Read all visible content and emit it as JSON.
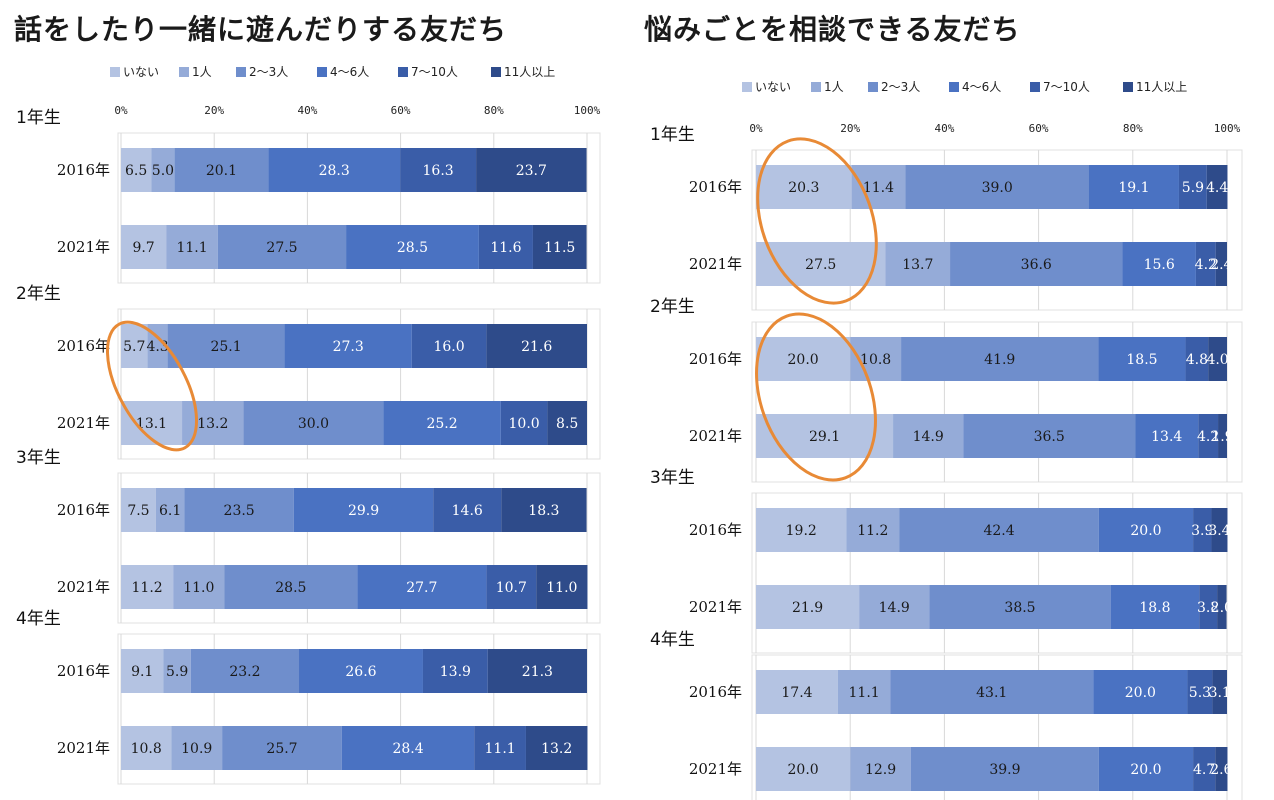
{
  "chart_data": [
    {
      "type": "bar",
      "stacked": true,
      "orientation": "horizontal",
      "title": "話をしたり一緒に遊んだりする友だち",
      "legend": [
        "いない",
        "1人",
        "2〜3人",
        "4〜6人",
        "7〜10人",
        "11人以上"
      ],
      "axis_ticks": [
        "0%",
        "20%",
        "40%",
        "60%",
        "80%",
        "100%"
      ],
      "xlim": [
        0,
        100
      ],
      "groups": [
        {
          "grade": "1年生",
          "rows": [
            {
              "year": "2016年",
              "values": [
                6.5,
                5.0,
                20.1,
                28.3,
                16.3,
                23.7
              ],
              "labels": [
                "6.5",
                "5.0",
                "20.1",
                "28.3",
                "16.3",
                "23.7"
              ]
            },
            {
              "year": "2021年",
              "values": [
                9.7,
                11.1,
                27.5,
                28.5,
                11.6,
                11.5
              ],
              "labels": [
                "9.7",
                "11.1",
                "27.5",
                "28.5",
                "11.6",
                "11.5"
              ]
            }
          ]
        },
        {
          "grade": "2年生",
          "rows": [
            {
              "year": "2016年",
              "values": [
                5.7,
                4.3,
                25.1,
                27.3,
                16.0,
                21.6
              ],
              "labels": [
                "5.7",
                "4.3",
                "25.1",
                "27.3",
                "16.0",
                "21.6"
              ]
            },
            {
              "year": "2021年",
              "values": [
                13.1,
                13.2,
                30.0,
                25.2,
                10.0,
                8.5
              ],
              "labels": [
                "13.1",
                "13.2",
                "30.0",
                "25.2",
                "10.0",
                "8.5"
              ]
            }
          ]
        },
        {
          "grade": "3年生",
          "rows": [
            {
              "year": "2016年",
              "values": [
                7.5,
                6.1,
                23.5,
                29.9,
                14.6,
                18.3
              ],
              "labels": [
                "7.5",
                "6.1",
                "23.5",
                "29.9",
                "14.6",
                "18.3"
              ]
            },
            {
              "year": "2021年",
              "values": [
                11.2,
                11.0,
                28.5,
                27.7,
                10.7,
                11.0
              ],
              "labels": [
                "11.2",
                "11.0",
                "28.5",
                "27.7",
                "10.7",
                "11.0"
              ]
            }
          ]
        },
        {
          "grade": "4年生",
          "rows": [
            {
              "year": "2016年",
              "values": [
                9.1,
                5.9,
                23.2,
                26.6,
                13.9,
                21.3
              ],
              "labels": [
                "9.1",
                "5.9",
                "23.2",
                "26.6",
                "13.9",
                "21.3"
              ]
            },
            {
              "year": "2021年",
              "values": [
                10.8,
                10.9,
                25.7,
                28.4,
                11.1,
                13.2
              ],
              "labels": [
                "10.8",
                "10.9",
                "25.7",
                "28.4",
                "11.1",
                "13.2"
              ]
            }
          ]
        }
      ],
      "highlights": [
        {
          "grade": "2年生",
          "category": "いない",
          "note": "orange ellipse"
        }
      ]
    },
    {
      "type": "bar",
      "stacked": true,
      "orientation": "horizontal",
      "title": "悩みごとを相談できる友だち",
      "legend": [
        "いない",
        "1人",
        "2〜3人",
        "4〜6人",
        "7〜10人",
        "11人以上"
      ],
      "axis_ticks": [
        "0%",
        "20%",
        "40%",
        "60%",
        "80%",
        "100%"
      ],
      "xlim": [
        0,
        100
      ],
      "groups": [
        {
          "grade": "1年生",
          "rows": [
            {
              "year": "2016年",
              "values": [
                20.3,
                11.4,
                39.0,
                19.1,
                5.9,
                4.4
              ],
              "labels": [
                "20.3",
                "11.4",
                "39.0",
                "19.1",
                "5.9",
                "4.4"
              ]
            },
            {
              "year": "2021年",
              "values": [
                27.5,
                13.7,
                36.6,
                15.6,
                4.2,
                2.4
              ],
              "labels": [
                "27.5",
                "13.7",
                "36.6",
                "15.6",
                "4.2",
                "2.4"
              ]
            }
          ]
        },
        {
          "grade": "2年生",
          "rows": [
            {
              "year": "2016年",
              "values": [
                20.0,
                10.8,
                41.9,
                18.5,
                4.8,
                4.0
              ],
              "labels": [
                "20.0",
                "10.8",
                "41.9",
                "18.5",
                "4.8",
                "4.0"
              ]
            },
            {
              "year": "2021年",
              "values": [
                29.1,
                14.9,
                36.5,
                13.4,
                4.2,
                1.9
              ],
              "labels": [
                "29.1",
                "14.9",
                "36.5",
                "13.4",
                "4.2",
                "1.9"
              ]
            }
          ]
        },
        {
          "grade": "3年生",
          "rows": [
            {
              "year": "2016年",
              "values": [
                19.2,
                11.2,
                42.4,
                20.0,
                3.9,
                3.4
              ],
              "labels": [
                "19.2",
                "11.2",
                "42.4",
                "20.0",
                "3.9",
                "3.4"
              ]
            },
            {
              "year": "2021年",
              "values": [
                21.9,
                14.9,
                38.5,
                18.8,
                3.8,
                2.0
              ],
              "labels": [
                "21.9",
                "14.9",
                "38.5",
                "18.8",
                "3.8",
                "2.0"
              ]
            }
          ]
        },
        {
          "grade": "4年生",
          "rows": [
            {
              "year": "2016年",
              "values": [
                17.4,
                11.1,
                43.1,
                20.0,
                5.3,
                3.1
              ],
              "labels": [
                "17.4",
                "11.1",
                "43.1",
                "20.0",
                "5.3",
                "3.1"
              ]
            },
            {
              "year": "2021年",
              "values": [
                20.0,
                12.9,
                39.9,
                20.0,
                4.7,
                2.6
              ],
              "labels": [
                "20.0",
                "12.9",
                "39.9",
                "20.0",
                "4.7",
                "2.6"
              ]
            }
          ]
        }
      ],
      "highlights": [
        {
          "grade": "1年生",
          "category": "いない",
          "note": "orange ellipse"
        },
        {
          "grade": "2年生",
          "category": "いない",
          "note": "orange ellipse"
        }
      ]
    }
  ],
  "colors": {
    "series": [
      "#b4c3e2",
      "#95abd8",
      "#6f8ecc",
      "#4a72c2",
      "#3a5da8",
      "#2e4b8a"
    ],
    "highlight": "#e88a36",
    "grid": "#d9d9d9",
    "box": "#e0e0e0"
  }
}
